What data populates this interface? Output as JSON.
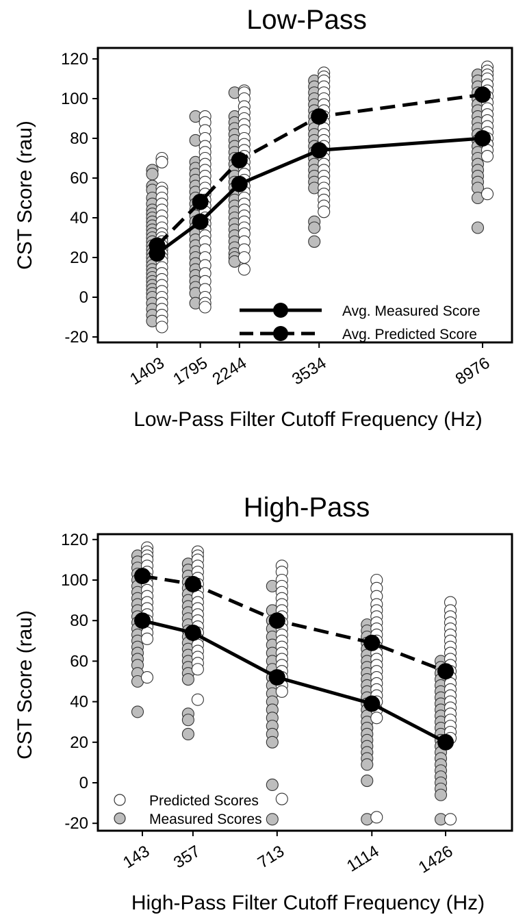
{
  "colors": {
    "predicted_point_fill": "#ffffff",
    "measured_point_fill": "#bdbdbd",
    "point_stroke": "#333333",
    "mean_marker": "#000000",
    "line": "#000000"
  },
  "chart_data": [
    {
      "type": "scatter",
      "title": "Low-Pass",
      "xlabel": "Low-Pass Filter Cutoff Frequency (Hz)",
      "ylabel": "CST Score (rau)",
      "ylim": [
        -20,
        120
      ],
      "yticks": [
        -20,
        0,
        20,
        40,
        60,
        80,
        100,
        120
      ],
      "x_scale": "log",
      "x_ticks": [
        1403,
        1795,
        2244,
        3534,
        8976
      ],
      "x_tick_labels": [
        "1403",
        "1795",
        "2244",
        "3534",
        "8976"
      ],
      "grid": false,
      "legend_position": "bottom-right",
      "legend": [
        {
          "label": "Avg. Measured Score",
          "style": "solid-line-filled-circle"
        },
        {
          "label": "Avg. Predicted Score",
          "style": "dashed-line-filled-circle"
        }
      ],
      "series": [
        {
          "name": "Avg. Measured Score",
          "style": "solid",
          "x": [
            1403,
            1795,
            2244,
            3534,
            8976
          ],
          "values": [
            22,
            38,
            57,
            74,
            80
          ]
        },
        {
          "name": "Avg. Predicted Score",
          "style": "dashed",
          "x": [
            1403,
            1795,
            2244,
            3534,
            8976
          ],
          "values": [
            26,
            48,
            69,
            91,
            102
          ]
        }
      ],
      "scatter_groups": [
        {
          "x": 1403,
          "measured": [
            64,
            62,
            56,
            54,
            50,
            47,
            44,
            42,
            40,
            38,
            36,
            34,
            32,
            30,
            28,
            26,
            24,
            22,
            20,
            18,
            16,
            14,
            12,
            10,
            8,
            6,
            4,
            2,
            0,
            -3,
            -6,
            -9,
            -12
          ],
          "predicted": [
            70,
            68,
            55,
            53,
            50,
            47,
            44,
            41,
            38,
            35,
            32,
            30,
            28,
            26,
            24,
            22,
            20,
            18,
            15,
            12,
            9,
            6,
            3,
            0,
            -3,
            -6,
            -9,
            -12,
            -15
          ]
        },
        {
          "x": 1795,
          "measured": [
            91,
            79,
            68,
            65,
            62,
            59,
            56,
            53,
            50,
            47,
            44,
            41,
            38,
            35,
            32,
            29,
            26,
            23,
            20,
            17,
            14,
            11,
            8,
            5,
            2,
            -3
          ],
          "predicted": [
            91,
            88,
            84,
            80,
            76,
            73,
            70,
            67,
            64,
            61,
            58,
            55,
            52,
            49,
            46,
            43,
            40,
            37,
            34,
            31,
            28,
            24,
            20,
            16,
            12,
            8,
            4,
            0,
            -3,
            -5
          ]
        },
        {
          "x": 2244,
          "measured": [
            103,
            91,
            88,
            85,
            82,
            79,
            76,
            73,
            70,
            67,
            64,
            61,
            58,
            55,
            52,
            49,
            46,
            43,
            40,
            37,
            34,
            31,
            28,
            25,
            22,
            20,
            18
          ],
          "predicted": [
            104,
            103,
            100,
            96,
            93,
            90,
            87,
            84,
            80,
            77,
            74,
            71,
            68,
            65,
            62,
            59,
            56,
            53,
            50,
            47,
            44,
            41,
            38,
            35,
            32,
            28,
            24,
            20,
            14
          ]
        },
        {
          "x": 3534,
          "measured": [
            109,
            106,
            103,
            100,
            97,
            94,
            91,
            88,
            85,
            82,
            79,
            76,
            73,
            70,
            67,
            64,
            61,
            58,
            55,
            38,
            35,
            28
          ],
          "predicted": [
            113,
            111,
            109,
            106,
            103,
            100,
            97,
            94,
            91,
            88,
            85,
            82,
            79,
            76,
            73,
            70,
            67,
            64,
            61,
            58,
            55,
            52,
            49,
            46,
            43
          ]
        },
        {
          "x": 8976,
          "measured": [
            112,
            109,
            106,
            103,
            100,
            97,
            94,
            91,
            88,
            85,
            82,
            79,
            76,
            73,
            70,
            67,
            64,
            61,
            58,
            55,
            50,
            35
          ],
          "predicted": [
            116,
            114,
            112,
            110,
            107,
            104,
            101,
            98,
            95,
            92,
            89,
            86,
            83,
            80,
            77,
            74,
            71,
            52
          ]
        }
      ]
    },
    {
      "type": "scatter",
      "title": "High-Pass",
      "xlabel": "High-Pass Filter Cutoff Frequency (Hz)",
      "ylabel": "CST Score (rau)",
      "ylim": [
        -20,
        120
      ],
      "yticks": [
        -20,
        0,
        20,
        40,
        60,
        80,
        100,
        120
      ],
      "x_scale": "linear",
      "x_ticks": [
        143,
        357,
        713,
        1114,
        1426
      ],
      "x_tick_labels": [
        "143",
        "357",
        "713",
        "1114",
        "1426"
      ],
      "grid": false,
      "legend_position": "bottom-left",
      "legend": [
        {
          "label": "Predicted Scores",
          "style": "open-circle"
        },
        {
          "label": "Measured Scores",
          "style": "gray-circle"
        }
      ],
      "series": [
        {
          "name": "Avg. Measured Score",
          "style": "solid",
          "x": [
            143,
            357,
            713,
            1114,
            1426
          ],
          "values": [
            80,
            74,
            52,
            39,
            20
          ]
        },
        {
          "name": "Avg. Predicted Score",
          "style": "dashed",
          "x": [
            143,
            357,
            713,
            1114,
            1426
          ],
          "values": [
            102,
            98,
            80,
            69,
            55
          ]
        }
      ],
      "scatter_groups": [
        {
          "x": 143,
          "measured": [
            112,
            109,
            106,
            103,
            100,
            97,
            94,
            91,
            88,
            85,
            82,
            79,
            76,
            73,
            70,
            67,
            64,
            61,
            58,
            54,
            50,
            35
          ],
          "predicted": [
            116,
            114,
            112,
            110,
            107,
            104,
            101,
            98,
            95,
            92,
            89,
            86,
            83,
            80,
            77,
            74,
            71,
            52
          ]
        },
        {
          "x": 357,
          "measured": [
            108,
            105,
            102,
            99,
            96,
            93,
            90,
            87,
            84,
            81,
            78,
            75,
            72,
            69,
            66,
            63,
            60,
            57,
            54,
            51,
            34,
            31,
            24
          ],
          "predicted": [
            114,
            112,
            110,
            107,
            104,
            101,
            98,
            95,
            92,
            89,
            86,
            83,
            80,
            77,
            74,
            71,
            68,
            65,
            62,
            59,
            56,
            41
          ]
        },
        {
          "x": 713,
          "measured": [
            97,
            85,
            80,
            76,
            72,
            68,
            64,
            60,
            56,
            52,
            48,
            44,
            40,
            36,
            32,
            28,
            24,
            20,
            -1,
            -18
          ],
          "predicted": [
            107,
            104,
            100,
            97,
            94,
            91,
            88,
            85,
            82,
            79,
            76,
            73,
            70,
            67,
            64,
            61,
            58,
            55,
            52,
            48,
            45,
            -8
          ]
        },
        {
          "x": 1114,
          "measured": [
            78,
            75,
            72,
            69,
            66,
            63,
            60,
            57,
            54,
            51,
            48,
            45,
            42,
            39,
            36,
            33,
            30,
            27,
            24,
            21,
            18,
            15,
            12,
            9,
            1,
            -18
          ],
          "predicted": [
            100,
            96,
            92,
            88,
            85,
            82,
            79,
            76,
            73,
            70,
            67,
            64,
            61,
            58,
            55,
            52,
            49,
            46,
            43,
            40,
            36,
            32,
            -17
          ]
        },
        {
          "x": 1426,
          "measured": [
            60,
            57,
            54,
            51,
            48,
            45,
            42,
            39,
            36,
            33,
            30,
            27,
            24,
            21,
            18,
            15,
            12,
            9,
            6,
            3,
            0,
            -3,
            -6,
            -18
          ],
          "predicted": [
            89,
            85,
            82,
            79,
            76,
            73,
            70,
            67,
            64,
            61,
            58,
            55,
            52,
            49,
            46,
            43,
            40,
            37,
            34,
            31,
            28,
            25,
            22,
            -18
          ]
        }
      ]
    }
  ]
}
